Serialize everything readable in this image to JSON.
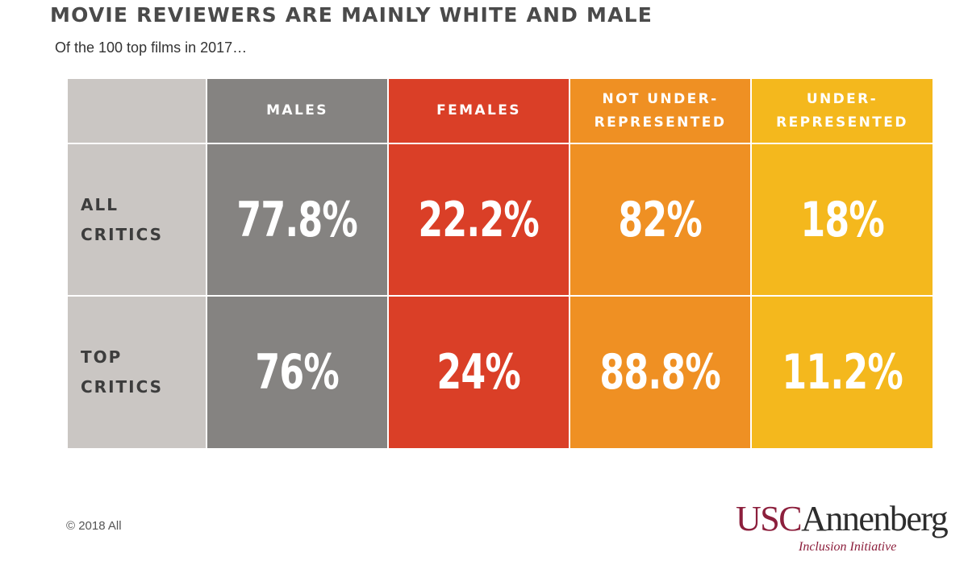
{
  "title": "MOVIE REVIEWERS ARE MAINLY WHITE AND MALE",
  "subtitle": "Of the 100 top films in 2017…",
  "footer": "© 2018 All",
  "logo": {
    "usc": "USC",
    "annenberg": "Annenberg",
    "tagline": "Inclusion Initiative"
  },
  "colors": {
    "label_bg": "#cac6c3",
    "males": "#858381",
    "females": "#da3f27",
    "not_under": "#ef9023",
    "under": "#f4b81d"
  },
  "chart_data": {
    "type": "table",
    "title": "MOVIE REVIEWERS ARE MAINLY WHITE AND MALE",
    "subtitle": "Of the 100 top films in 2017…",
    "columns": [
      "MALES",
      "FEMALES",
      "NOT UNDER-\nREPRESENTED",
      "UNDER-\nREPRESENTED"
    ],
    "rows": [
      {
        "label": "ALL\nCRITICS",
        "values": [
          "77.8%",
          "22.2%",
          "82%",
          "18%"
        ]
      },
      {
        "label": "TOP\nCRITICS",
        "values": [
          "76%",
          "24%",
          "88.8%",
          "11.2%"
        ]
      }
    ]
  }
}
